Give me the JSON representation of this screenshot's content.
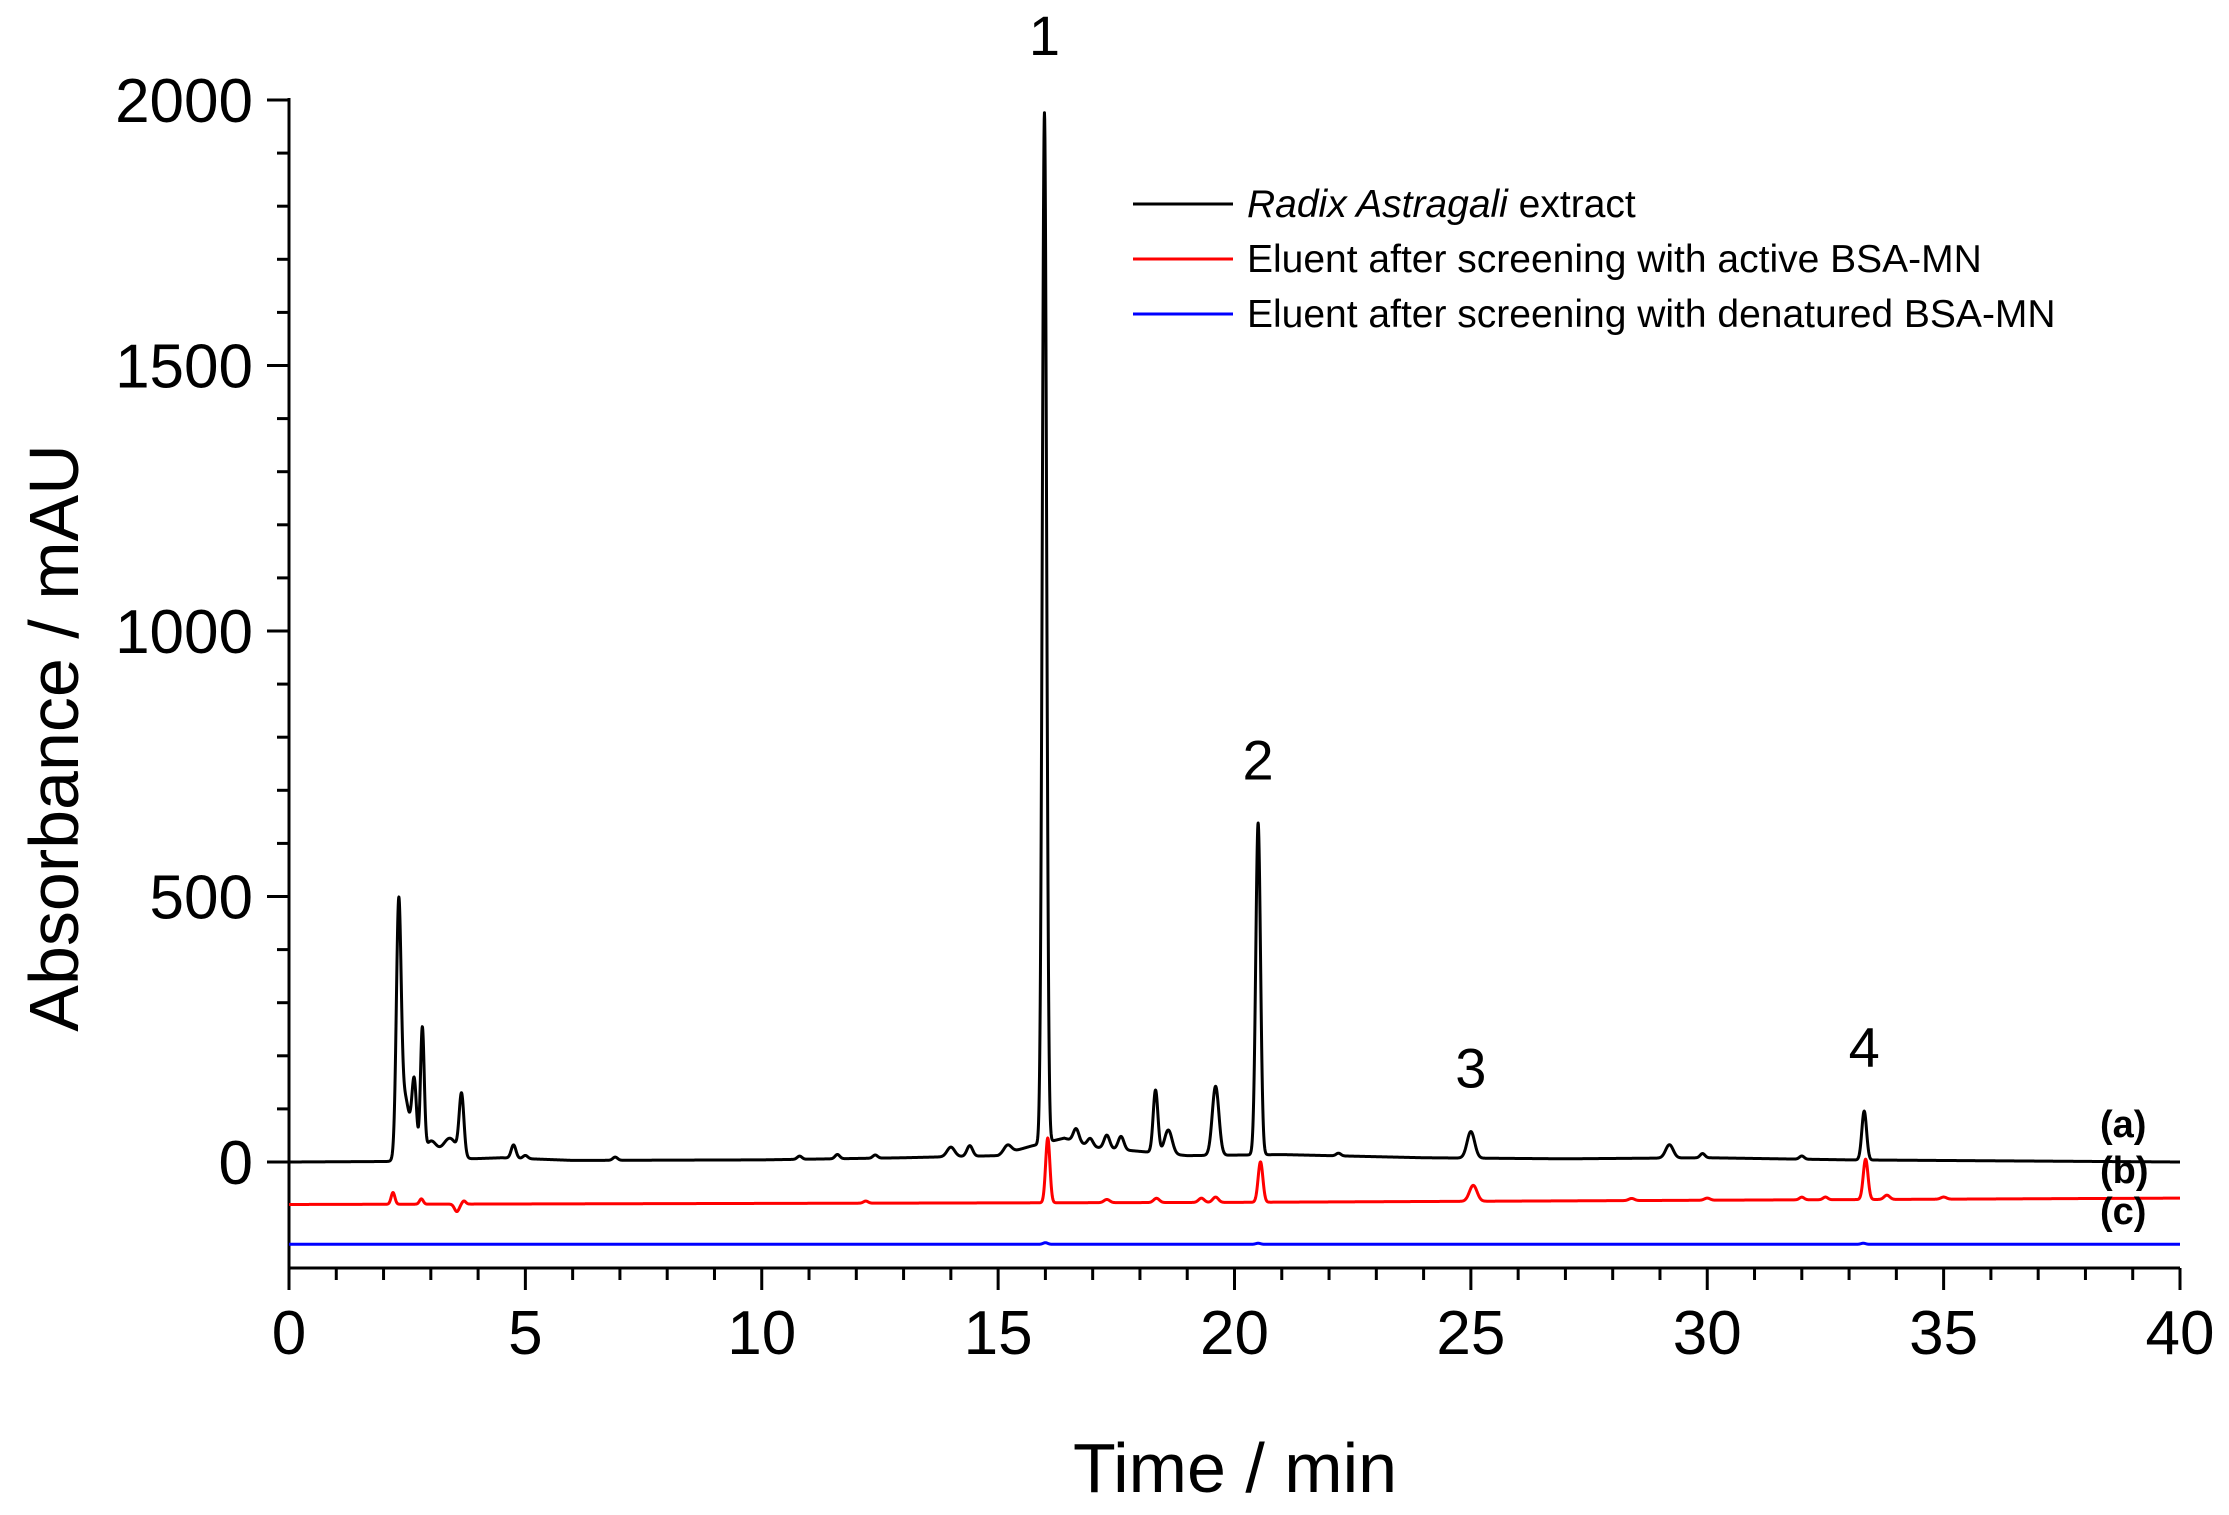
{
  "chart_data": {
    "type": "line",
    "xlabel": "Time / min",
    "ylabel": "Absorbance / mAU",
    "xlim": [
      0,
      40
    ],
    "ylim": [
      -200,
      2000
    ],
    "x_ticks": [
      0,
      5,
      10,
      15,
      20,
      25,
      30,
      35,
      40
    ],
    "y_ticks": [
      0,
      500,
      1000,
      1500,
      2000
    ],
    "legend": {
      "position": "top-right",
      "entries": [
        {
          "italic": "Radix Astragali",
          "text": " extract",
          "color": "#000000"
        },
        {
          "italic": "",
          "text": "Eluent after screening with active BSA-MN",
          "color": "#ff0000"
        },
        {
          "italic": "",
          "text": "Eluent after screening with denatured BSA-MN",
          "color": "#0000ff"
        }
      ]
    },
    "baseline_points": [
      [
        0,
        0
      ],
      [
        2.2,
        1
      ],
      [
        4.5,
        8
      ],
      [
        6,
        3
      ],
      [
        10,
        4
      ],
      [
        13,
        8
      ],
      [
        15,
        12
      ],
      [
        15.7,
        30
      ],
      [
        16.4,
        45
      ],
      [
        17,
        28
      ],
      [
        19,
        12
      ],
      [
        21,
        14
      ],
      [
        24,
        8
      ],
      [
        27,
        6
      ],
      [
        30,
        8
      ],
      [
        33,
        4
      ],
      [
        40,
        0
      ]
    ],
    "series": [
      {
        "name": "Radix Astragali extract",
        "label": "(a)",
        "color": "#000000",
        "offset": 0,
        "peaks": [
          {
            "t": 2.32,
            "h": 445,
            "w": 0.05
          },
          {
            "t": 2.45,
            "h": 120,
            "w": 0.1
          },
          {
            "t": 2.65,
            "h": 140,
            "w": 0.05
          },
          {
            "t": 2.82,
            "h": 240,
            "w": 0.04
          },
          {
            "t": 3.0,
            "h": 35,
            "w": 0.12
          },
          {
            "t": 3.4,
            "h": 40,
            "w": 0.15
          },
          {
            "t": 3.65,
            "h": 115,
            "w": 0.05
          },
          {
            "t": 4.75,
            "h": 25,
            "w": 0.05
          },
          {
            "t": 5.0,
            "h": 6,
            "w": 0.05
          },
          {
            "t": 6.9,
            "h": 6,
            "w": 0.05
          },
          {
            "t": 10.8,
            "h": 6,
            "w": 0.05
          },
          {
            "t": 11.6,
            "h": 8,
            "w": 0.05
          },
          {
            "t": 12.4,
            "h": 6,
            "w": 0.05
          },
          {
            "t": 14.0,
            "h": 18,
            "w": 0.08
          },
          {
            "t": 14.4,
            "h": 20,
            "w": 0.06
          },
          {
            "t": 15.2,
            "h": 15,
            "w": 0.08
          },
          {
            "t": 15.98,
            "h": 1940,
            "w": 0.045
          },
          {
            "t": 16.65,
            "h": 25,
            "w": 0.06
          },
          {
            "t": 16.95,
            "h": 15,
            "w": 0.06
          },
          {
            "t": 17.3,
            "h": 25,
            "w": 0.06
          },
          {
            "t": 17.6,
            "h": 25,
            "w": 0.06
          },
          {
            "t": 18.33,
            "h": 118,
            "w": 0.05
          },
          {
            "t": 18.6,
            "h": 45,
            "w": 0.08
          },
          {
            "t": 19.6,
            "h": 130,
            "w": 0.07
          },
          {
            "t": 20.5,
            "h": 625,
            "w": 0.05
          },
          {
            "t": 22.2,
            "h": 5,
            "w": 0.05
          },
          {
            "t": 25.0,
            "h": 50,
            "w": 0.08
          },
          {
            "t": 29.2,
            "h": 25,
            "w": 0.08
          },
          {
            "t": 29.9,
            "h": 8,
            "w": 0.05
          },
          {
            "t": 32.0,
            "h": 6,
            "w": 0.05
          },
          {
            "t": 33.32,
            "h": 92,
            "w": 0.05
          }
        ]
      },
      {
        "name": "Eluent after screening with active BSA-MN",
        "label": "(b)",
        "color": "#ff0000",
        "offset": -80,
        "drift": [
          [
            0,
            -80
          ],
          [
            20,
            -76
          ],
          [
            40,
            -68
          ]
        ],
        "peaks": [
          {
            "t": 2.2,
            "h": 22,
            "w": 0.04
          },
          {
            "t": 2.8,
            "h": 10,
            "w": 0.04
          },
          {
            "t": 3.55,
            "h": -14,
            "w": 0.05
          },
          {
            "t": 3.7,
            "h": 6,
            "w": 0.04
          },
          {
            "t": 12.2,
            "h": 4,
            "w": 0.05
          },
          {
            "t": 16.05,
            "h": 122,
            "w": 0.045
          },
          {
            "t": 17.3,
            "h": 6,
            "w": 0.06
          },
          {
            "t": 18.35,
            "h": 8,
            "w": 0.06
          },
          {
            "t": 19.3,
            "h": 8,
            "w": 0.06
          },
          {
            "t": 19.6,
            "h": 10,
            "w": 0.06
          },
          {
            "t": 20.55,
            "h": 76,
            "w": 0.05
          },
          {
            "t": 25.05,
            "h": 30,
            "w": 0.08
          },
          {
            "t": 28.4,
            "h": 4,
            "w": 0.06
          },
          {
            "t": 30.0,
            "h": 4,
            "w": 0.06
          },
          {
            "t": 32.0,
            "h": 5,
            "w": 0.05
          },
          {
            "t": 32.5,
            "h": 5,
            "w": 0.05
          },
          {
            "t": 33.35,
            "h": 76,
            "w": 0.05
          },
          {
            "t": 33.8,
            "h": 8,
            "w": 0.06
          },
          {
            "t": 35.0,
            "h": 4,
            "w": 0.06
          }
        ]
      },
      {
        "name": "Eluent after screening with denatured BSA-MN",
        "label": "(c)",
        "color": "#0000ff",
        "offset": -155,
        "drift": [
          [
            0,
            -155
          ],
          [
            40,
            -155
          ]
        ],
        "peaks": [
          {
            "t": 16.0,
            "h": 3,
            "w": 0.05
          },
          {
            "t": 20.5,
            "h": 2,
            "w": 0.05
          },
          {
            "t": 33.3,
            "h": 2,
            "w": 0.05
          }
        ]
      }
    ],
    "peak_annotations": [
      {
        "label": "1",
        "t": 15.98,
        "y": 2085
      },
      {
        "label": "2",
        "t": 20.5,
        "y": 720
      },
      {
        "label": "3",
        "t": 25.0,
        "y": 140
      },
      {
        "label": "4",
        "t": 33.32,
        "y": 180
      }
    ]
  }
}
